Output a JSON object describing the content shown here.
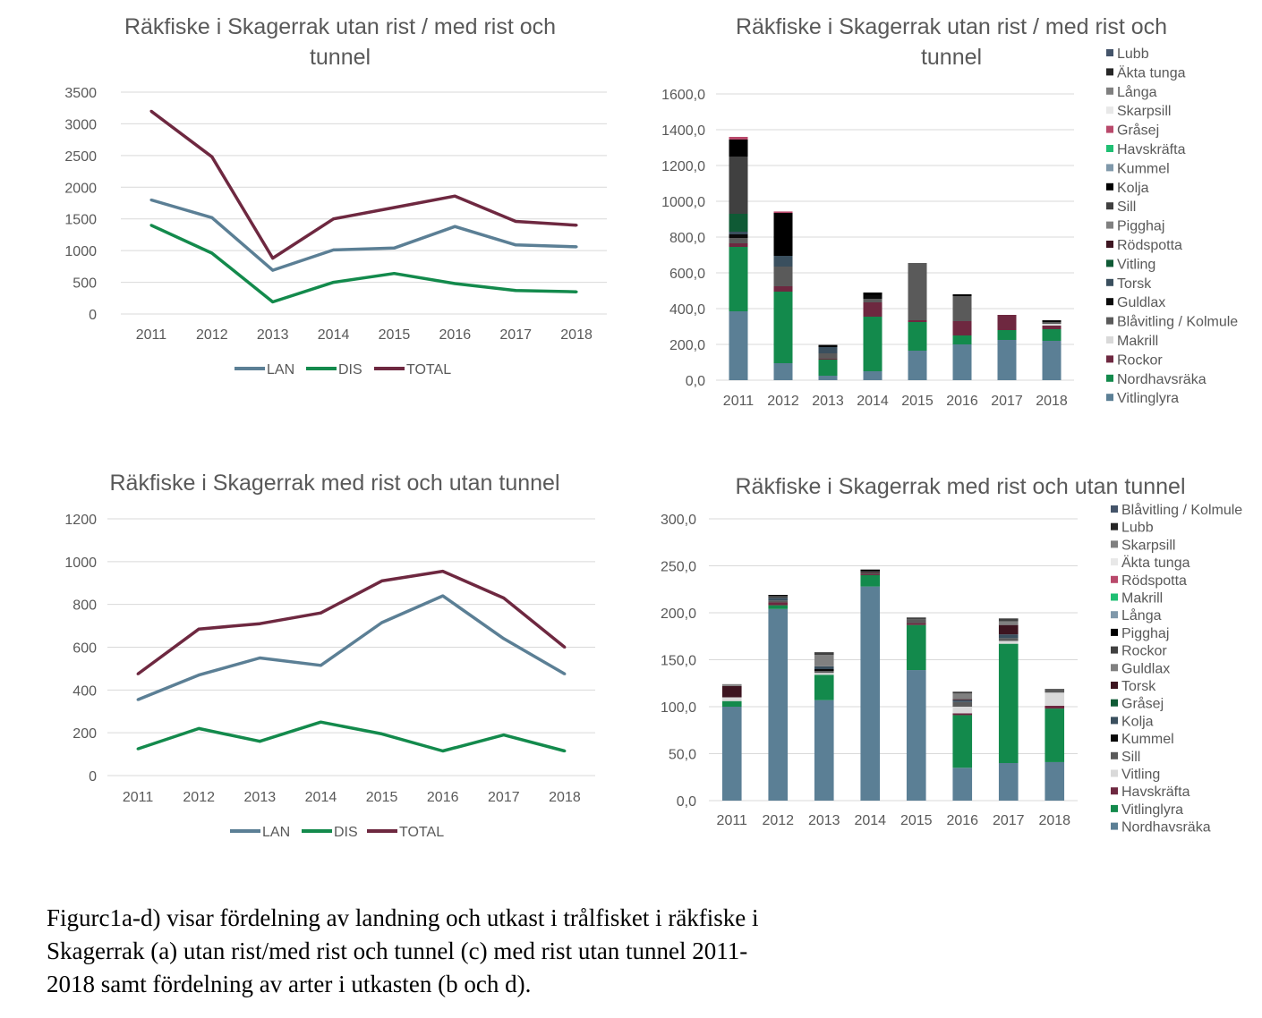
{
  "chart_data": [
    {
      "id": "a",
      "type": "line",
      "title_lines": [
        "Räkfiske i Skagerrak utan rist / med rist och",
        "tunnel"
      ],
      "categories": [
        "2011",
        "2012",
        "2013",
        "2014",
        "2015",
        "2016",
        "2017",
        "2018"
      ],
      "ylim": [
        0,
        3500
      ],
      "yticks": [
        "0",
        "500",
        "1000",
        "1500",
        "2000",
        "2500",
        "3000",
        "3500"
      ],
      "grid": true,
      "legend_position": "bottom",
      "series": [
        {
          "name": "LAN",
          "color": "#5b7f95",
          "values": [
            1800,
            1520,
            690,
            1010,
            1040,
            1380,
            1090,
            1060
          ]
        },
        {
          "name": "DIS",
          "color": "#138a4c",
          "values": [
            1400,
            960,
            190,
            500,
            640,
            480,
            370,
            350
          ]
        },
        {
          "name": "TOTAL",
          "color": "#6e2840",
          "values": [
            3200,
            2480,
            880,
            1500,
            1680,
            1860,
            1460,
            1400
          ]
        }
      ]
    },
    {
      "id": "b",
      "type": "bar",
      "stacked": true,
      "title_lines": [
        "Räkfiske i Skagerrak utan rist / med rist och",
        "tunnel"
      ],
      "categories": [
        "2011",
        "2012",
        "2013",
        "2014",
        "2015",
        "2016",
        "2017",
        "2018"
      ],
      "ylim": [
        0,
        1600
      ],
      "yticks": [
        "0,0",
        "200,0",
        "400,0",
        "600,0",
        "800,0",
        "1000,0",
        "1200,0",
        "1400,0",
        "1600,0"
      ],
      "grid": true,
      "legend_position": "right",
      "series": [
        {
          "name": "Lubb",
          "color": "#44546a",
          "values": [
            0,
            0,
            0,
            0,
            0,
            0,
            0,
            0
          ]
        },
        {
          "name": "Äkta tunga",
          "color": "#262626",
          "values": [
            0,
            0,
            0,
            0,
            0,
            0,
            0,
            0
          ]
        },
        {
          "name": "Långa",
          "color": "#7f7f7f",
          "values": [
            0,
            0,
            0,
            0,
            0,
            0,
            0,
            0
          ]
        },
        {
          "name": "Skarpsill",
          "color": "#e8e8e8",
          "values": [
            0,
            0,
            0,
            0,
            0,
            0,
            0,
            0
          ]
        },
        {
          "name": "Gråsej",
          "color": "#b9496b",
          "values": [
            15,
            8,
            0,
            0,
            0,
            0,
            0,
            0
          ]
        },
        {
          "name": "Havskräfta",
          "color": "#1fbf73",
          "values": [
            0,
            0,
            0,
            0,
            0,
            0,
            0,
            0
          ]
        },
        {
          "name": "Kummel",
          "color": "#7f98aa",
          "values": [
            0,
            0,
            0,
            0,
            0,
            0,
            0,
            0
          ]
        },
        {
          "name": "Kolja",
          "color": "#000000",
          "values": [
            95,
            240,
            12,
            15,
            0,
            10,
            0,
            0
          ]
        },
        {
          "name": "Sill",
          "color": "#404040",
          "values": [
            320,
            0,
            0,
            0,
            0,
            0,
            0,
            0
          ]
        },
        {
          "name": "Pigghaj",
          "color": "#808080",
          "values": [
            0,
            0,
            0,
            0,
            0,
            0,
            0,
            0
          ]
        },
        {
          "name": "Rödspotta",
          "color": "#3d1520",
          "values": [
            0,
            0,
            0,
            0,
            0,
            0,
            0,
            0
          ]
        },
        {
          "name": "Vitling",
          "color": "#0f5a35",
          "values": [
            100,
            0,
            0,
            0,
            0,
            0,
            0,
            0
          ]
        },
        {
          "name": "Torsk",
          "color": "#3a4f5e",
          "values": [
            15,
            60,
            35,
            0,
            0,
            0,
            0,
            0
          ]
        },
        {
          "name": "Guldlax",
          "color": "#0a0a0a",
          "values": [
            20,
            0,
            0,
            20,
            0,
            0,
            0,
            10
          ]
        },
        {
          "name": "Blåvitling / Kolmule",
          "color": "#5a5a5a",
          "values": [
            30,
            110,
            30,
            20,
            320,
            140,
            0,
            10
          ]
        },
        {
          "name": "Makrill",
          "color": "#d9d9d9",
          "values": [
            0,
            0,
            0,
            0,
            0,
            0,
            0,
            10
          ]
        },
        {
          "name": "Rockor",
          "color": "#6e2840",
          "values": [
            20,
            30,
            5,
            80,
            10,
            80,
            85,
            20
          ]
        },
        {
          "name": "Nordhavsräka",
          "color": "#138a4c",
          "values": [
            360,
            400,
            90,
            305,
            160,
            50,
            55,
            65
          ]
        },
        {
          "name": "Vitlinglyra",
          "color": "#5b7f95",
          "values": [
            385,
            95,
            25,
            50,
            165,
            200,
            225,
            220
          ]
        }
      ]
    },
    {
      "id": "c",
      "type": "line",
      "title_lines": [
        "Räkfiske i Skagerrak med rist och utan tunnel"
      ],
      "categories": [
        "2011",
        "2012",
        "2013",
        "2014",
        "2015",
        "2016",
        "2017",
        "2018"
      ],
      "ylim": [
        0,
        1200
      ],
      "yticks": [
        "0",
        "200",
        "400",
        "600",
        "800",
        "1000",
        "1200"
      ],
      "grid": true,
      "legend_position": "bottom",
      "series": [
        {
          "name": "LAN",
          "color": "#5b7f95",
          "values": [
            355,
            470,
            550,
            515,
            715,
            840,
            640,
            475
          ]
        },
        {
          "name": "DIS",
          "color": "#138a4c",
          "values": [
            125,
            220,
            160,
            250,
            195,
            115,
            190,
            115
          ]
        },
        {
          "name": "TOTAL",
          "color": "#6e2840",
          "values": [
            475,
            685,
            710,
            760,
            910,
            955,
            830,
            600
          ]
        }
      ]
    },
    {
      "id": "d",
      "type": "bar",
      "stacked": true,
      "title_lines": [
        "Räkfiske i Skagerrak med rist och utan tunnel"
      ],
      "categories": [
        "2011",
        "2012",
        "2013",
        "2014",
        "2015",
        "2016",
        "2017",
        "2018"
      ],
      "ylim": [
        0,
        300
      ],
      "yticks": [
        "0,0",
        "50,0",
        "100,0",
        "150,0",
        "200,0",
        "250,0",
        "300,0"
      ],
      "grid": true,
      "legend_position": "right",
      "series": [
        {
          "name": "Blåvitling / Kolmule",
          "color": "#44546a",
          "values": [
            0,
            0,
            0,
            0,
            0,
            0,
            0,
            0
          ]
        },
        {
          "name": "Lubb",
          "color": "#262626",
          "values": [
            0,
            0,
            0,
            0,
            0,
            0,
            0,
            0
          ]
        },
        {
          "name": "Skarpsill",
          "color": "#7f7f7f",
          "values": [
            0,
            0,
            0,
            0,
            0,
            0,
            0,
            0
          ]
        },
        {
          "name": "Äkta tunga",
          "color": "#e8e8e8",
          "values": [
            0,
            0,
            0,
            0,
            0,
            0,
            0,
            0
          ]
        },
        {
          "name": "Rödspotta",
          "color": "#b9496b",
          "values": [
            0,
            0,
            0,
            0,
            0,
            0,
            0,
            0
          ]
        },
        {
          "name": "Makrill",
          "color": "#1fbf73",
          "values": [
            0,
            0,
            0,
            0,
            0,
            0,
            0,
            0
          ]
        },
        {
          "name": "Långa",
          "color": "#7f98aa",
          "values": [
            0,
            0,
            0,
            0,
            0,
            0,
            0,
            0
          ]
        },
        {
          "name": "Pigghaj",
          "color": "#000000",
          "values": [
            0,
            1,
            0,
            2,
            0,
            0,
            0,
            0
          ]
        },
        {
          "name": "Rockor",
          "color": "#404040",
          "values": [
            0,
            2,
            3,
            1,
            2,
            2,
            3,
            0
          ]
        },
        {
          "name": "Guldlax",
          "color": "#808080",
          "values": [
            2,
            0,
            12,
            0,
            0,
            6,
            4,
            0
          ]
        },
        {
          "name": "Torsk",
          "color": "#3d1520",
          "values": [
            12,
            0,
            0,
            1,
            0,
            1,
            10,
            0
          ]
        },
        {
          "name": "Gråsej",
          "color": "#0f5a35",
          "values": [
            0,
            0,
            0,
            0,
            0,
            0,
            0,
            0
          ]
        },
        {
          "name": "Kolja",
          "color": "#3a4f5e",
          "values": [
            0,
            3,
            3,
            0,
            0,
            2,
            4,
            0
          ]
        },
        {
          "name": "Kummel",
          "color": "#0a0a0a",
          "values": [
            0,
            0,
            2,
            0,
            0,
            0,
            0,
            0
          ]
        },
        {
          "name": "Sill",
          "color": "#5a5a5a",
          "values": [
            0,
            2,
            2,
            1,
            4,
            5,
            3,
            4
          ]
        },
        {
          "name": "Vitling",
          "color": "#d9d9d9",
          "values": [
            4,
            0,
            2,
            0,
            0,
            7,
            3,
            14
          ]
        },
        {
          "name": "Havskräfta",
          "color": "#6e2840",
          "values": [
            0,
            3,
            0,
            1,
            2,
            2,
            0,
            3
          ]
        },
        {
          "name": "Vitlinglyra",
          "color": "#138a4c",
          "values": [
            6,
            4,
            27,
            12,
            48,
            56,
            127,
            57
          ]
        },
        {
          "name": "Nordhavsräka",
          "color": "#5b7f95",
          "values": [
            100,
            204,
            107,
            228,
            139,
            35,
            40,
            41
          ]
        }
      ]
    }
  ],
  "caption_lines": [
    "Figurc1a-d) visar fördelning av landning och utkast i trålfisket i räkfiske i",
    "Skagerrak (a) utan rist/med rist och tunnel (c) med rist utan tunnel 2011-",
    "2018 samt fördelning av arter i utkasten (b och d)."
  ]
}
